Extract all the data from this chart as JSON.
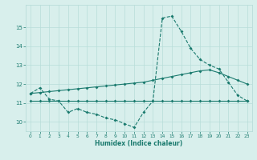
{
  "xlabel": "Humidex (Indice chaleur)",
  "x_values": [
    0,
    1,
    2,
    3,
    4,
    5,
    6,
    7,
    8,
    9,
    10,
    11,
    12,
    13,
    14,
    15,
    16,
    17,
    18,
    19,
    20,
    21,
    22,
    23
  ],
  "series1": [
    11.5,
    11.8,
    11.2,
    11.1,
    10.5,
    10.7,
    10.5,
    10.4,
    10.2,
    10.1,
    9.9,
    9.7,
    10.5,
    11.1,
    15.5,
    15.6,
    14.8,
    13.9,
    13.3,
    13.0,
    12.8,
    12.1,
    11.4,
    11.1
  ],
  "series2": [
    11.1,
    11.1,
    11.1,
    11.1,
    11.1,
    11.1,
    11.1,
    11.1,
    11.1,
    11.1,
    11.1,
    11.1,
    11.1,
    11.1,
    11.1,
    11.1,
    11.1,
    11.1,
    11.1,
    11.1,
    11.1,
    11.1,
    11.1,
    11.1
  ],
  "series3": [
    11.5,
    11.55,
    11.6,
    11.65,
    11.7,
    11.75,
    11.8,
    11.85,
    11.9,
    11.95,
    12.0,
    12.05,
    12.1,
    12.2,
    12.3,
    12.4,
    12.5,
    12.6,
    12.7,
    12.75,
    12.6,
    12.4,
    12.2,
    12.0
  ],
  "line_color": "#1a7a6e",
  "bg_color": "#d8efec",
  "grid_color": "#b8ddd9",
  "ylim": [
    9.5,
    16.2
  ],
  "yticks": [
    10,
    11,
    12,
    13,
    14,
    15
  ],
  "xticks": [
    0,
    1,
    2,
    3,
    4,
    5,
    6,
    7,
    8,
    9,
    10,
    11,
    12,
    13,
    14,
    15,
    16,
    17,
    18,
    19,
    20,
    21,
    22,
    23
  ]
}
